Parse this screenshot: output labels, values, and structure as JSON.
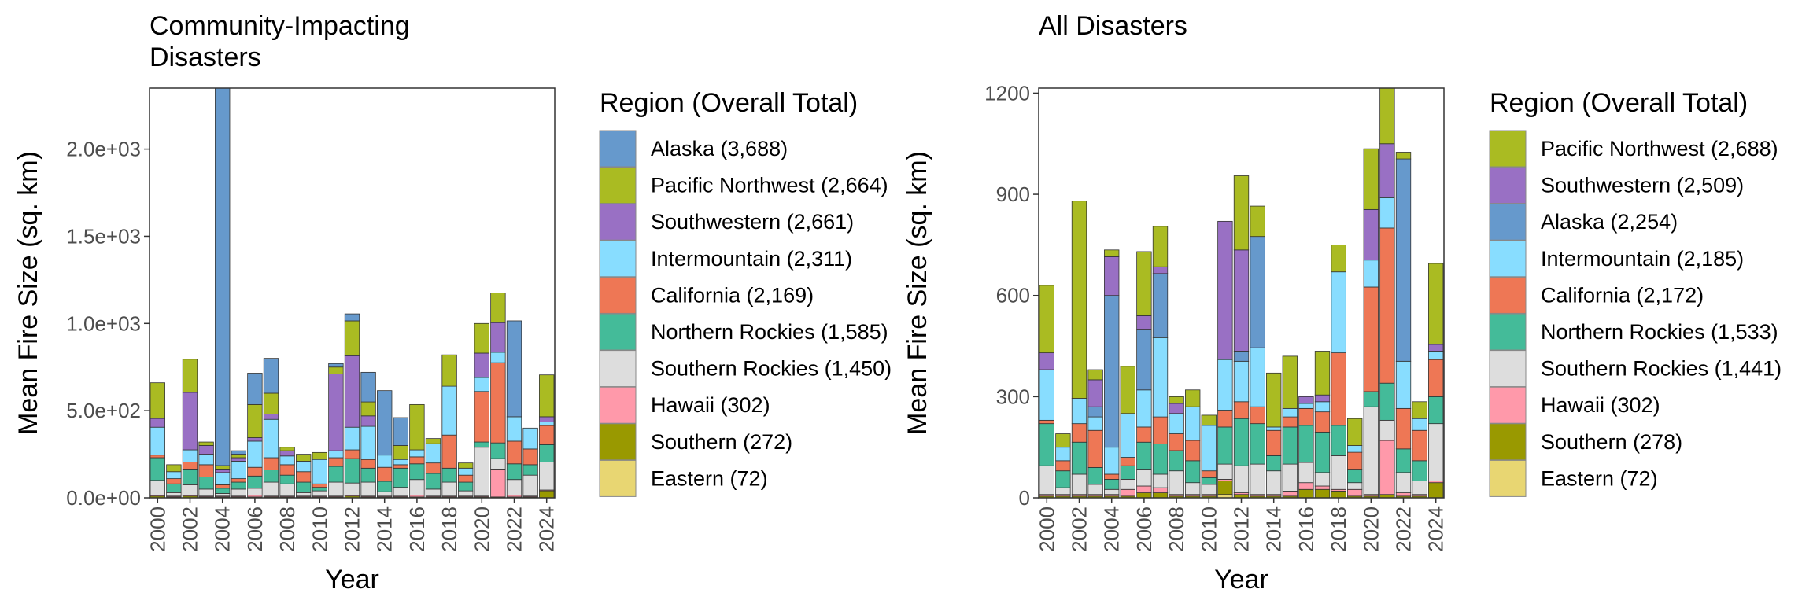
{
  "figure": {
    "legend_title": "Region (Overall Total)"
  },
  "chart_data": [
    {
      "type": "bar",
      "stacked": true,
      "title": "Community-Impacting\nDisasters",
      "xlabel": "Year",
      "ylabel": "Mean Fire Size (sq. km)",
      "ylim": [
        0,
        2350
      ],
      "yticks": [
        0,
        500,
        1000,
        1500,
        2000
      ],
      "ytick_labels": [
        "0.0e+00",
        "5.0e+02",
        "1.0e+03",
        "1.5e+03",
        "2.0e+03"
      ],
      "xtick_labels": [
        "2000",
        "2002",
        "2004",
        "2006",
        "2008",
        "2010",
        "2012",
        "2014",
        "2016",
        "2018",
        "2020",
        "2022",
        "2024"
      ],
      "legend_position": "right",
      "categories": [
        "2000",
        "2001",
        "2002",
        "2003",
        "2004",
        "2005",
        "2006",
        "2007",
        "2008",
        "2009",
        "2010",
        "2011",
        "2012",
        "2013",
        "2014",
        "2015",
        "2016",
        "2017",
        "2018",
        "2019",
        "2020",
        "2021",
        "2022",
        "2023",
        "2024"
      ],
      "series": [
        {
          "name": "Eastern (72)",
          "color": "#E8D672",
          "values": [
            0,
            0,
            0,
            0,
            0,
            0,
            0,
            0,
            0,
            0,
            0,
            0,
            0,
            0,
            0,
            0,
            0,
            0,
            0,
            0,
            0,
            0,
            0,
            0,
            0
          ]
        },
        {
          "name": "Southern (272)",
          "color": "#999900",
          "values": [
            10,
            5,
            10,
            5,
            5,
            5,
            5,
            5,
            5,
            5,
            5,
            5,
            10,
            5,
            5,
            5,
            5,
            5,
            5,
            5,
            5,
            5,
            5,
            5,
            40
          ]
        },
        {
          "name": "Hawaii (302)",
          "color": "#FF99AA",
          "values": [
            5,
            5,
            5,
            5,
            5,
            5,
            10,
            5,
            5,
            5,
            5,
            5,
            5,
            5,
            5,
            5,
            10,
            5,
            5,
            5,
            5,
            160,
            10,
            5,
            5
          ]
        },
        {
          "name": "Southern Rockies (1,450)",
          "color": "#DDDDDD",
          "values": [
            85,
            20,
            60,
            40,
            15,
            40,
            40,
            80,
            70,
            20,
            30,
            80,
            70,
            80,
            25,
            50,
            90,
            40,
            80,
            30,
            280,
            60,
            90,
            120,
            160
          ]
        },
        {
          "name": "Northern Rockies (1,585)",
          "color": "#44BB99",
          "values": [
            130,
            50,
            90,
            70,
            30,
            40,
            70,
            70,
            50,
            60,
            20,
            90,
            140,
            80,
            60,
            110,
            90,
            90,
            80,
            50,
            30,
            90,
            90,
            60,
            100
          ]
        },
        {
          "name": "California (2,169)",
          "color": "#EE7755",
          "values": [
            15,
            30,
            40,
            70,
            20,
            20,
            50,
            70,
            60,
            60,
            20,
            50,
            50,
            50,
            80,
            20,
            40,
            60,
            190,
            40,
            290,
            460,
            130,
            90,
            110
          ]
        },
        {
          "name": "Intermountain (2,311)",
          "color": "#88DDFF",
          "values": [
            160,
            40,
            70,
            60,
            70,
            100,
            150,
            220,
            50,
            60,
            140,
            40,
            130,
            190,
            70,
            30,
            40,
            110,
            280,
            40,
            80,
            60,
            140,
            120,
            20
          ]
        },
        {
          "name": "Southwestern (2,661)",
          "color": "#9970C4",
          "values": [
            50,
            0,
            330,
            50,
            20,
            20,
            20,
            30,
            30,
            0,
            0,
            440,
            410,
            60,
            0,
            0,
            0,
            0,
            0,
            0,
            140,
            170,
            0,
            0,
            30
          ]
        },
        {
          "name": "Pacific Northwest (2,664)",
          "color": "#AABB22",
          "values": [
            205,
            40,
            190,
            20,
            20,
            20,
            190,
            120,
            20,
            40,
            40,
            40,
            200,
            80,
            0,
            80,
            260,
            30,
            180,
            30,
            170,
            170,
            0,
            0,
            240
          ]
        },
        {
          "name": "Alaska (3,688)",
          "color": "#6699CC",
          "values": [
            0,
            0,
            0,
            0,
            2200,
            20,
            180,
            200,
            0,
            0,
            0,
            20,
            40,
            170,
            370,
            160,
            0,
            0,
            0,
            0,
            0,
            0,
            550,
            0,
            0
          ]
        }
      ]
    },
    {
      "type": "bar",
      "stacked": true,
      "title": "All Disasters",
      "xlabel": "Year",
      "ylabel": "Mean Fire Size (sq. km)",
      "ylim": [
        0,
        1215
      ],
      "yticks": [
        0,
        300,
        600,
        900,
        1200
      ],
      "ytick_labels": [
        "0",
        "300",
        "600",
        "900",
        "1200"
      ],
      "xtick_labels": [
        "2000",
        "2002",
        "2004",
        "2006",
        "2008",
        "2010",
        "2012",
        "2014",
        "2016",
        "2018",
        "2020",
        "2022",
        "2024"
      ],
      "legend_position": "right",
      "categories": [
        "2000",
        "2001",
        "2002",
        "2003",
        "2004",
        "2005",
        "2006",
        "2007",
        "2008",
        "2009",
        "2010",
        "2011",
        "2012",
        "2013",
        "2014",
        "2015",
        "2016",
        "2017",
        "2018",
        "2019",
        "2020",
        "2021",
        "2022",
        "2023",
        "2024"
      ],
      "series": [
        {
          "name": "Eastern (72)",
          "color": "#E8D672",
          "values": [
            0,
            0,
            0,
            0,
            0,
            0,
            0,
            0,
            0,
            0,
            0,
            10,
            0,
            0,
            0,
            0,
            0,
            0,
            0,
            0,
            0,
            0,
            0,
            0,
            0
          ]
        },
        {
          "name": "Southern (278)",
          "color": "#999900",
          "values": [
            5,
            5,
            5,
            5,
            5,
            5,
            15,
            15,
            5,
            5,
            5,
            40,
            10,
            5,
            5,
            5,
            25,
            25,
            20,
            5,
            5,
            10,
            5,
            5,
            45
          ]
        },
        {
          "name": "Hawaii (302)",
          "color": "#FF99AA",
          "values": [
            5,
            5,
            5,
            5,
            5,
            20,
            20,
            15,
            5,
            5,
            5,
            5,
            5,
            5,
            5,
            15,
            20,
            10,
            5,
            20,
            5,
            160,
            10,
            5,
            5
          ]
        },
        {
          "name": "Southern Rockies (1,441)",
          "color": "#DDDDDD",
          "values": [
            85,
            20,
            60,
            30,
            15,
            30,
            50,
            40,
            70,
            35,
            30,
            45,
            80,
            90,
            70,
            80,
            60,
            40,
            100,
            20,
            260,
            60,
            60,
            40,
            170
          ]
        },
        {
          "name": "Northern Rockies (1,533)",
          "color": "#44BB99",
          "values": [
            125,
            50,
            95,
            50,
            30,
            40,
            80,
            90,
            60,
            65,
            20,
            110,
            140,
            120,
            45,
            110,
            110,
            120,
            90,
            40,
            45,
            110,
            70,
            60,
            80
          ]
        },
        {
          "name": "California (2,172)",
          "color": "#EE7755",
          "values": [
            10,
            30,
            55,
            110,
            15,
            25,
            45,
            80,
            50,
            60,
            20,
            50,
            50,
            50,
            75,
            30,
            50,
            60,
            215,
            50,
            310,
            460,
            120,
            90,
            110
          ]
        },
        {
          "name": "Intermountain (2,185)",
          "color": "#88DDFF",
          "values": [
            150,
            40,
            75,
            40,
            80,
            130,
            110,
            235,
            60,
            100,
            135,
            150,
            120,
            175,
            10,
            25,
            15,
            30,
            240,
            20,
            80,
            90,
            140,
            35,
            25
          ]
        },
        {
          "name": "Alaska (2,254)",
          "color": "#6699CC",
          "values": [
            0,
            0,
            0,
            30,
            450,
            0,
            180,
            190,
            0,
            0,
            0,
            0,
            30,
            330,
            0,
            0,
            0,
            0,
            0,
            0,
            0,
            0,
            600,
            0,
            0
          ]
        },
        {
          "name": "Southwestern (2,509)",
          "color": "#9970C4",
          "values": [
            50,
            0,
            0,
            80,
            115,
            0,
            40,
            20,
            30,
            0,
            0,
            410,
            300,
            0,
            0,
            0,
            20,
            20,
            0,
            0,
            150,
            160,
            0,
            0,
            20
          ]
        },
        {
          "name": "Pacific Northwest (2,688)",
          "color": "#AABB22",
          "values": [
            200,
            40,
            585,
            30,
            20,
            140,
            190,
            120,
            20,
            50,
            30,
            0,
            220,
            90,
            160,
            155,
            0,
            130,
            80,
            80,
            180,
            210,
            20,
            50,
            240
          ]
        }
      ]
    }
  ]
}
